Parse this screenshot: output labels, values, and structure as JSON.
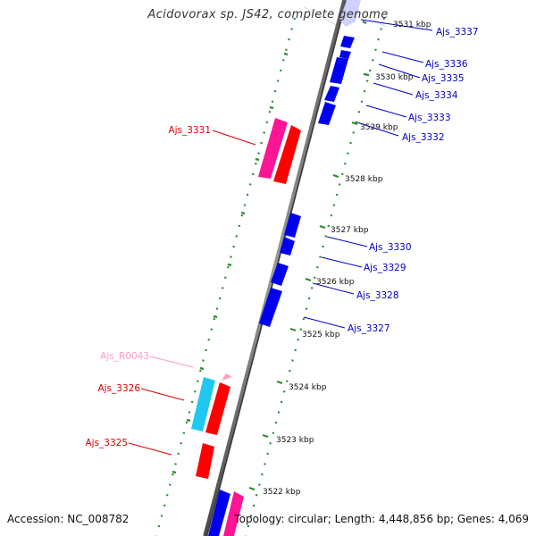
{
  "title": "Acidovorax sp. JS42, complete genome",
  "accession": "Accession: NC_008782",
  "topology": "Topology: circular; Length: 4,448,856 bp; Genes: 4,069",
  "colors": {
    "background": "#ffffff",
    "backbone": "#7f7f7f",
    "ticks": "#2e8b2e",
    "gene_forward": "#0000ff",
    "gene_reverse": "#ff0000",
    "gene_magenta": "#ff1493",
    "gene_cyan": "#1ec8f0",
    "rna": "#ffb0d0"
  },
  "scale_labels": [
    {
      "label": "3531 kbp",
      "pos": 3531
    },
    {
      "label": "3530 kbp",
      "pos": 3530
    },
    {
      "label": "3529 kbp",
      "pos": 3529
    },
    {
      "label": "3528 kbp",
      "pos": 3528
    },
    {
      "label": "3527 kbp",
      "pos": 3527
    },
    {
      "label": "3526 kbp",
      "pos": 3526
    },
    {
      "label": "3525 kbp",
      "pos": 3525
    },
    {
      "label": "3524 kbp",
      "pos": 3524
    },
    {
      "label": "3523 kbp",
      "pos": 3523
    },
    {
      "label": "3522 kbp",
      "pos": 3522
    }
  ],
  "gene_labels": [
    {
      "label": "Ajs_3337",
      "strand": "forward",
      "color": "#0000cc"
    },
    {
      "label": "Ajs_3336",
      "strand": "forward",
      "color": "#0000cc"
    },
    {
      "label": "Ajs_3335",
      "strand": "forward",
      "color": "#0000cc"
    },
    {
      "label": "Ajs_3334",
      "strand": "forward",
      "color": "#0000cc"
    },
    {
      "label": "Ajs_3333",
      "strand": "forward",
      "color": "#0000cc"
    },
    {
      "label": "Ajs_3332",
      "strand": "forward",
      "color": "#0000cc"
    },
    {
      "label": "Ajs_3331",
      "strand": "reverse",
      "color": "#dd0000"
    },
    {
      "label": "Ajs_3330",
      "strand": "forward",
      "color": "#0000cc"
    },
    {
      "label": "Ajs_3329",
      "strand": "forward",
      "color": "#0000cc"
    },
    {
      "label": "Ajs_3328",
      "strand": "forward",
      "color": "#0000cc"
    },
    {
      "label": "Ajs_3327",
      "strand": "forward",
      "color": "#0000cc"
    },
    {
      "label": "Ajs_R0043",
      "strand": "reverse",
      "color": "#ff99cc"
    },
    {
      "label": "Ajs_3326",
      "strand": "reverse",
      "color": "#dd0000"
    },
    {
      "label": "Ajs_3325",
      "strand": "reverse",
      "color": "#dd0000"
    }
  ]
}
